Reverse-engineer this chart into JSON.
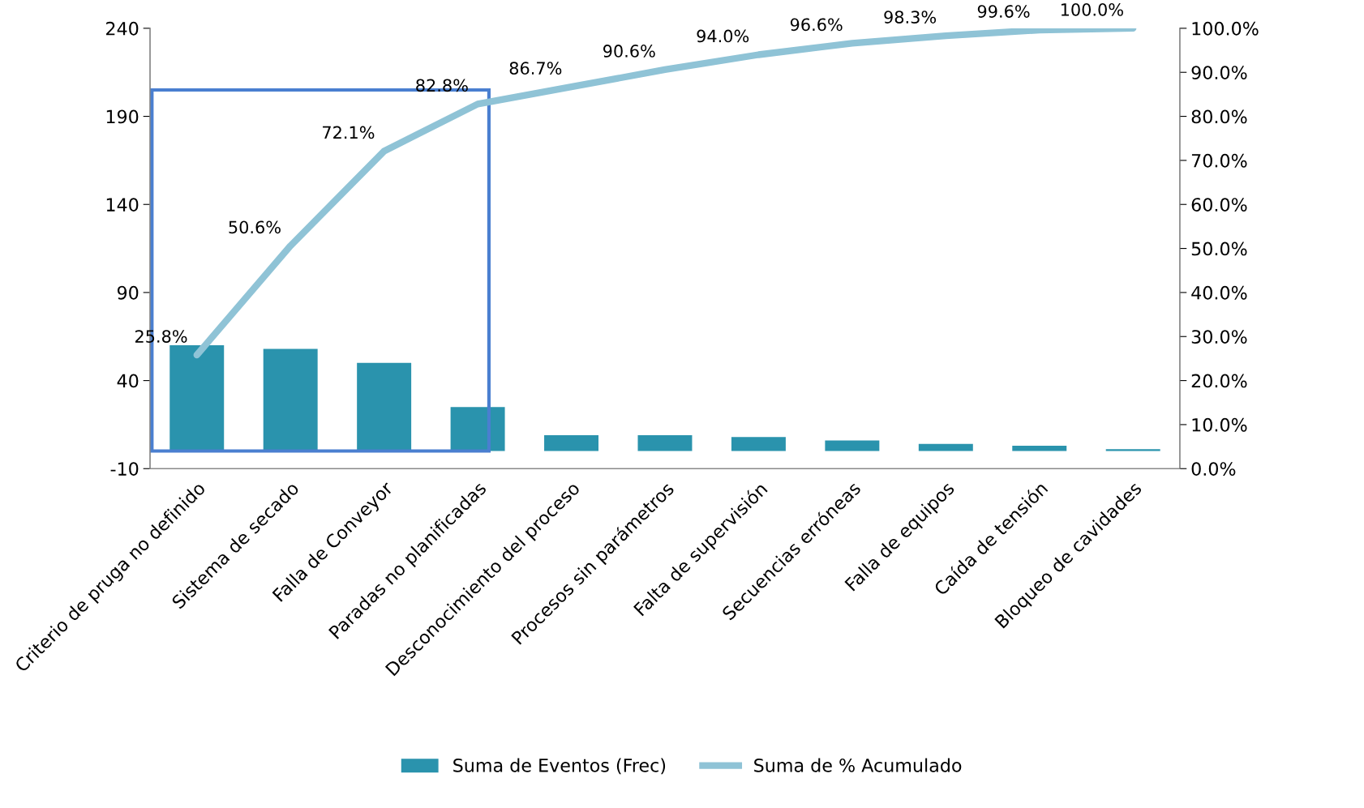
{
  "chart_data": {
    "type": "bar",
    "categories": [
      "Criterio de pruga no definido",
      "Sistema de secado",
      "Falla de Conveyor",
      "Paradas no planificadas",
      "Desconocimiento del proceso",
      "Procesos sin parámetros",
      "Falta de supervisión",
      "Secuencias erróneas",
      "Falla de equipos",
      "Caída de tensión",
      "Bloqueo de cavidades"
    ],
    "series": [
      {
        "name": "Suma de Eventos (Frec)",
        "color": "#2a93ad",
        "values": [
          60,
          58,
          50,
          25,
          9,
          9,
          8,
          6,
          4,
          3,
          1
        ]
      },
      {
        "name": "Suma de % Acumulado",
        "type": "line",
        "axis": "y2",
        "color": "#8fc3d6",
        "values": [
          25.8,
          50.6,
          72.1,
          82.8,
          86.7,
          90.6,
          94.0,
          96.6,
          98.3,
          99.6,
          100.0
        ],
        "value_labels": [
          "25.8%",
          "50.6%",
          "72.1%",
          "82.8%",
          "86.7%",
          "90.6%",
          "94.0%",
          "96.6%",
          "98.3%",
          "99.6%",
          "100.0%"
        ]
      }
    ],
    "ylim": [
      -10,
      240
    ],
    "yticks": [
      -10,
      40,
      90,
      140,
      190,
      240
    ],
    "y2lim": [
      0,
      100
    ],
    "y2ticks": [
      {
        "value": 0,
        "label": "0.0%"
      },
      {
        "value": 10,
        "label": "10.0%"
      },
      {
        "value": 20,
        "label": "20.0%"
      },
      {
        "value": 30,
        "label": "30.0%"
      },
      {
        "value": 40,
        "label": "40.0%"
      },
      {
        "value": 50,
        "label": "50.0%"
      },
      {
        "value": 60,
        "label": "60.0%"
      },
      {
        "value": 70,
        "label": "70.0%"
      },
      {
        "value": 80,
        "label": "80.0%"
      },
      {
        "value": 90,
        "label": "90.0%"
      },
      {
        "value": 100,
        "label": "100.0%"
      }
    ],
    "grid": false,
    "legend": "bottom"
  }
}
